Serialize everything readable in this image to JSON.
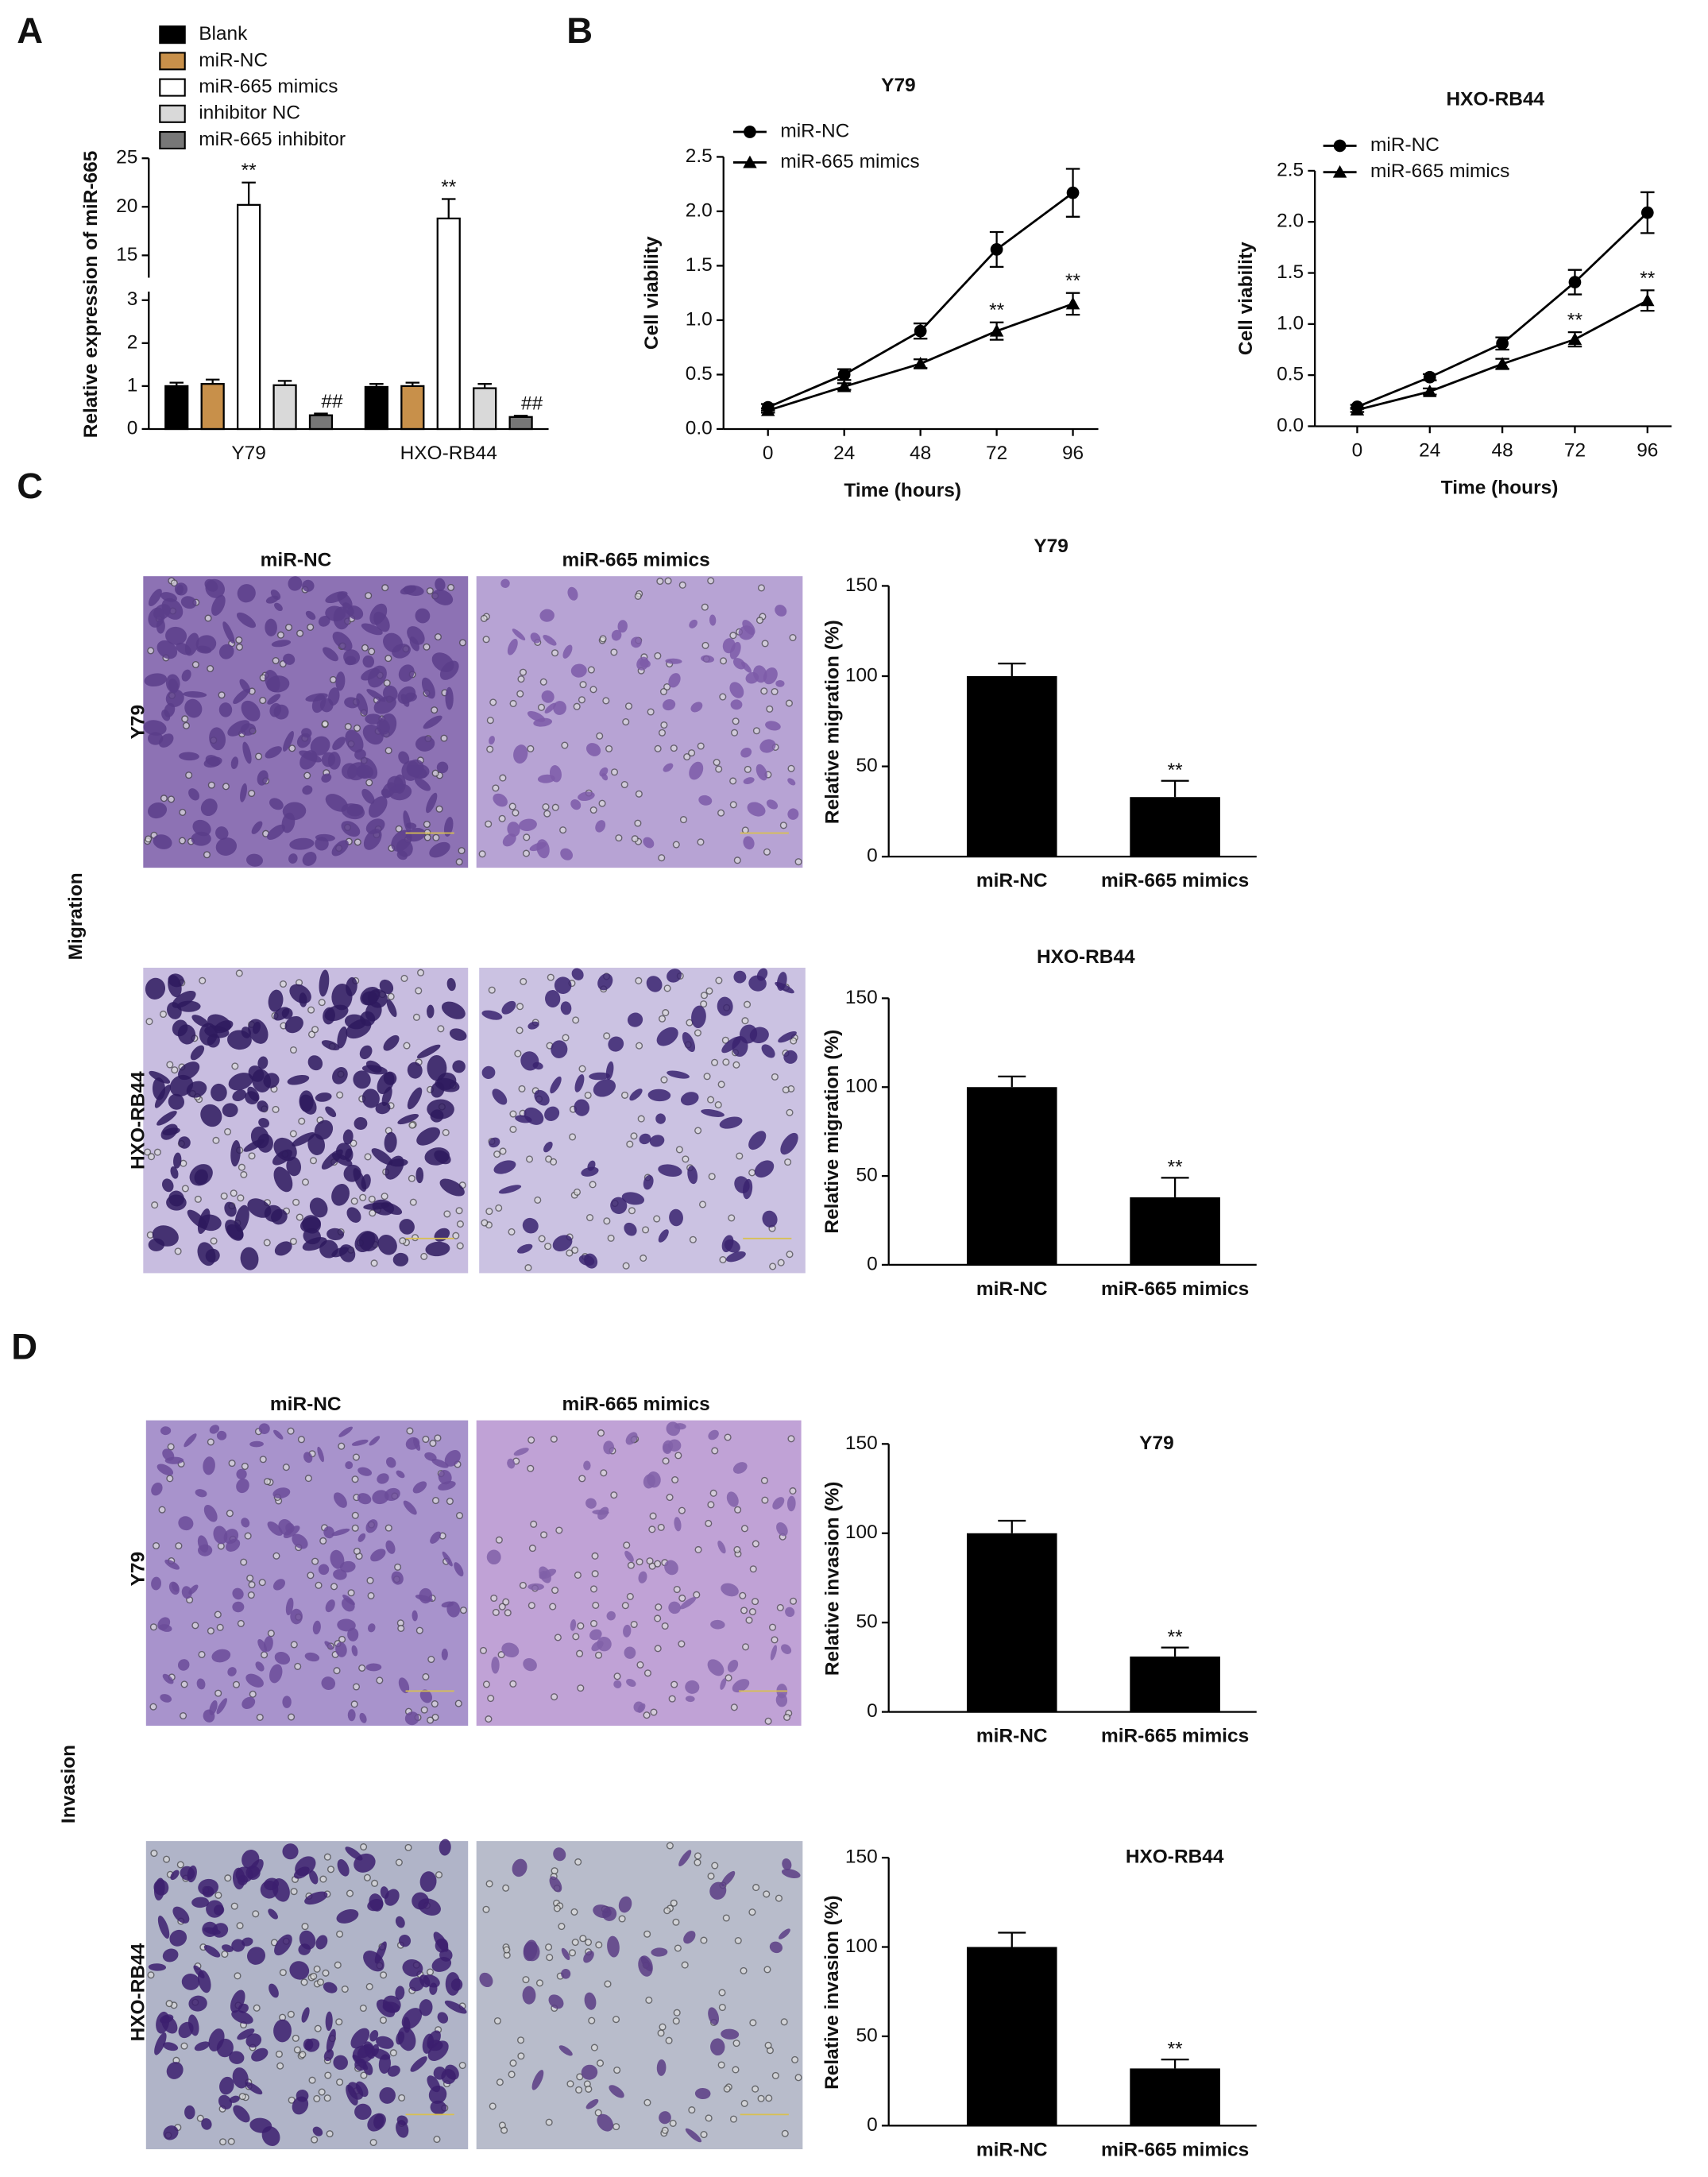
{
  "figure": {
    "panel_labels": [
      "A",
      "B",
      "C",
      "D"
    ],
    "migration": {
      "label": "Migration",
      "columns": [
        "miR-NC",
        "miR-665 mimics"
      ],
      "rows": [
        "Y79",
        "HXO-RB44"
      ]
    },
    "invasion": {
      "label": "Invasion",
      "columns": [
        "miR-NC",
        "miR-665 mimics"
      ],
      "rows": [
        "Y79",
        "HXO-RB44"
      ]
    }
  },
  "chart_data": [
    {
      "type": "grouped-bar",
      "y_label": "Relative expression of miR-665",
      "categories": [
        "Y79",
        "HXO-RB44"
      ],
      "series": [
        {
          "name": "Blank",
          "color": "#000000",
          "values": [
            1.0,
            0.98
          ],
          "errors": [
            0.08,
            0.07
          ],
          "annotations": [
            null,
            null
          ]
        },
        {
          "name": "miR-NC",
          "color": "#c8904a",
          "values": [
            1.05,
            1.0
          ],
          "errors": [
            0.1,
            0.08
          ],
          "annotations": [
            null,
            null
          ]
        },
        {
          "name": "miR-665 mimics",
          "color": "#ffffff",
          "values": [
            20.2,
            18.8
          ],
          "errors": [
            2.3,
            2.0
          ],
          "annotations": [
            "**",
            "**"
          ]
        },
        {
          "name": "inhibitor NC",
          "color": "#d9d9d9",
          "values": [
            1.02,
            0.95
          ],
          "errors": [
            0.1,
            0.1
          ],
          "annotations": [
            null,
            null
          ]
        },
        {
          "name": "miR-665 inhibitor",
          "color": "#777777",
          "values": [
            0.32,
            0.28
          ],
          "errors": [
            0.04,
            0.03
          ],
          "annotations": [
            "##",
            "##"
          ]
        }
      ],
      "ylim": [
        0,
        25
      ],
      "ybreak": [
        3.2,
        12.7
      ],
      "yticks": [
        0,
        1,
        2,
        3,
        15,
        20,
        25
      ]
    },
    {
      "type": "line",
      "title": "Y79",
      "x_label": "Time (hours)",
      "y_label": "Cell viability",
      "x": [
        0,
        24,
        48,
        72,
        96
      ],
      "xlim": [
        -14,
        104
      ],
      "xticks": [
        0,
        24,
        48,
        72,
        96
      ],
      "ylim": [
        0,
        2.5
      ],
      "yticks": [
        {
          "value": 0,
          "label": "0.0"
        },
        {
          "value": 0.5,
          "label": "0.5"
        },
        {
          "value": 1,
          "label": "1.0"
        },
        {
          "value": 1.5,
          "label": "1.5"
        },
        {
          "value": 2,
          "label": "2.0"
        },
        {
          "value": 2.5,
          "label": "2.5"
        }
      ],
      "series": [
        {
          "name": "miR-NC",
          "color": "#000000",
          "marker": "circle",
          "values": [
            0.2,
            0.5,
            0.9,
            1.65,
            2.17
          ],
          "errors": [
            0.03,
            0.05,
            0.07,
            0.16,
            0.22
          ],
          "annotations": [
            null,
            null,
            null,
            null,
            null
          ]
        },
        {
          "name": "miR-665 mimics",
          "color": "#000000",
          "marker": "triangle",
          "values": [
            0.17,
            0.39,
            0.6,
            0.9,
            1.15
          ],
          "errors": [
            0.02,
            0.03,
            0.04,
            0.08,
            0.1
          ],
          "annotations": [
            null,
            null,
            null,
            "**",
            "**"
          ]
        }
      ]
    },
    {
      "type": "line",
      "title": "HXO-RB44",
      "x_label": "Time (hours)",
      "y_label": "Cell viability",
      "x": [
        0,
        24,
        48,
        72,
        96
      ],
      "xlim": [
        -14,
        104
      ],
      "xticks": [
        0,
        24,
        48,
        72,
        96
      ],
      "ylim": [
        0,
        2.5
      ],
      "yticks": [
        {
          "value": 0,
          "label": "0.0"
        },
        {
          "value": 0.5,
          "label": "0.5"
        },
        {
          "value": 1,
          "label": "1.0"
        },
        {
          "value": 1.5,
          "label": "1.5"
        },
        {
          "value": 2,
          "label": "2.0"
        },
        {
          "value": 2.5,
          "label": "2.5"
        }
      ],
      "series": [
        {
          "name": "miR-NC",
          "color": "#000000",
          "marker": "circle",
          "values": [
            0.19,
            0.48,
            0.81,
            1.41,
            2.09
          ],
          "errors": [
            0.02,
            0.03,
            0.06,
            0.12,
            0.2
          ],
          "annotations": [
            null,
            null,
            null,
            null,
            null
          ]
        },
        {
          "name": "miR-665 mimics",
          "color": "#000000",
          "marker": "triangle",
          "values": [
            0.16,
            0.34,
            0.61,
            0.85,
            1.23
          ],
          "errors": [
            0.02,
            0.03,
            0.05,
            0.07,
            0.1
          ],
          "annotations": [
            null,
            null,
            null,
            "**",
            "**"
          ]
        }
      ]
    },
    {
      "type": "bar",
      "title": "Y79",
      "y_label": "Relative migration (%)",
      "categories": [
        "miR-NC",
        "miR-665 mimics"
      ],
      "values": [
        100,
        33
      ],
      "errors": [
        7,
        9
      ],
      "annotations": [
        null,
        "**"
      ],
      "color": "#000000",
      "ylim": [
        0,
        150
      ],
      "yticks": [
        0,
        50,
        100,
        150
      ]
    },
    {
      "type": "bar",
      "title": "HXO-RB44",
      "y_label": "Relative migration (%)",
      "categories": [
        "miR-NC",
        "miR-665 mimics"
      ],
      "values": [
        100,
        38
      ],
      "errors": [
        6,
        11
      ],
      "annotations": [
        null,
        "**"
      ],
      "color": "#000000",
      "ylim": [
        0,
        150
      ],
      "yticks": [
        0,
        50,
        100,
        150
      ]
    },
    {
      "type": "bar",
      "title": "Y79",
      "y_label": "Relative invasion (%)",
      "categories": [
        "miR-NC",
        "miR-665 mimics"
      ],
      "values": [
        100,
        31
      ],
      "errors": [
        7,
        5
      ],
      "annotations": [
        null,
        "**"
      ],
      "color": "#000000",
      "ylim": [
        0,
        150
      ],
      "yticks": [
        0,
        50,
        100,
        150
      ]
    },
    {
      "type": "bar",
      "title": "HXO-RB44",
      "y_label": "Relative invasion (%)",
      "categories": [
        "miR-NC",
        "miR-665 mimics"
      ],
      "values": [
        100,
        32
      ],
      "errors": [
        8,
        5
      ],
      "annotations": [
        null,
        "**"
      ],
      "color": "#000000",
      "ylim": [
        0,
        150
      ],
      "yticks": [
        0,
        50,
        100,
        150
      ]
    }
  ]
}
